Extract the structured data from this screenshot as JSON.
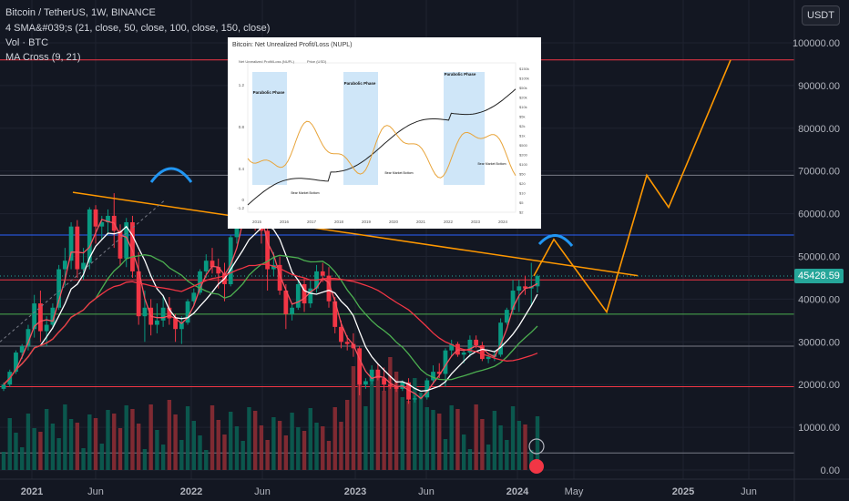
{
  "header": {
    "symbol_line": "Bitcoin / TetherUS, 1W, BINANCE",
    "sma_line": "4 SMA&#039;s (21, close, 50, close, 100, close, 150, close)",
    "vol_line": "Vol · BTC",
    "ma_cross_line": "MA Cross (9, 21)",
    "currency_button": "USDT"
  },
  "price_badge": "45428.59",
  "inset": {
    "title": "Bitcoin: Net Unrealized Profit/Loss (NUPL)",
    "legend": [
      "Net Unrealized Profit/Loss (NUPL)",
      "Price (USD)"
    ],
    "phase_labels": [
      "Parabolic Phase",
      "Parabolic Phase",
      "Parabolic Phase"
    ],
    "bottom_labels": [
      "Bear Market Bottom",
      "Bear Market Bottom",
      "Bear Market Bottom"
    ],
    "x_ticks": [
      "2015",
      "2016",
      "2017",
      "2018",
      "2019",
      "2020",
      "2021",
      "2022",
      "2023",
      "2024"
    ],
    "y_left_ticks": [
      "1.2",
      "0.8",
      "0.4",
      "0",
      "-1.2"
    ],
    "y_right_ticks": [
      "$150k",
      "$100k",
      "$50k",
      "$20k",
      "$10k",
      "$5k",
      "$2k",
      "$1k",
      "$500",
      "$200",
      "$100",
      "$50",
      "$20",
      "$10",
      "$5",
      "$2"
    ]
  },
  "chart_data": {
    "type": "candlestick",
    "y_axis_ticks": [
      "100000.00",
      "90000.00",
      "80000.00",
      "70000.00",
      "60000.00",
      "50000.00",
      "40000.00",
      "30000.00",
      "20000.00",
      "10000.00",
      "0.00"
    ],
    "x_axis_ticks": [
      "2021",
      "Jun",
      "2022",
      "Jun",
      "2023",
      "Jun",
      "2024",
      "May",
      "2025",
      "Jun"
    ],
    "ylim": [
      -1500,
      105500
    ],
    "last_price": 45428.59,
    "horizontal_levels": [
      {
        "price": 96000,
        "color": "#f23645"
      },
      {
        "price": 69000,
        "color": "#787b86"
      },
      {
        "price": 55000,
        "color": "#2962ff"
      },
      {
        "price": 44500,
        "color": "#f23645"
      },
      {
        "price": 36500,
        "color": "#4caf50"
      },
      {
        "price": 29000,
        "color": "#787b86"
      },
      {
        "price": 19500,
        "color": "#f23645"
      },
      {
        "price": 4000,
        "color": "#787b86"
      }
    ],
    "candles": [
      [
        19000,
        20500,
        18500,
        20000
      ],
      [
        20000,
        23500,
        19500,
        23000
      ],
      [
        23000,
        28000,
        22500,
        27500
      ],
      [
        27500,
        29500,
        26000,
        29000
      ],
      [
        29000,
        34000,
        28000,
        33000
      ],
      [
        33000,
        41000,
        31000,
        39000
      ],
      [
        39000,
        42000,
        30000,
        32500
      ],
      [
        32500,
        36000,
        29000,
        34000
      ],
      [
        34000,
        39000,
        33000,
        38000
      ],
      [
        38000,
        48000,
        37500,
        47000
      ],
      [
        47000,
        52000,
        43000,
        49000
      ],
      [
        49000,
        58000,
        47000,
        57000
      ],
      [
        57000,
        58500,
        45000,
        47000
      ],
      [
        47000,
        52000,
        44500,
        48500
      ],
      [
        48500,
        61500,
        47000,
        61000
      ],
      [
        61000,
        62000,
        53000,
        57000
      ],
      [
        57000,
        59500,
        54000,
        58000
      ],
      [
        58000,
        61000,
        55000,
        59500
      ],
      [
        59500,
        64800,
        52000,
        56000
      ],
      [
        56000,
        57500,
        48000,
        49500
      ],
      [
        49500,
        59000,
        47500,
        58000
      ],
      [
        58000,
        59500,
        45000,
        46500
      ],
      [
        46500,
        51000,
        34000,
        36000
      ],
      [
        36000,
        42000,
        30000,
        38000
      ],
      [
        38000,
        40000,
        31500,
        34000
      ],
      [
        34000,
        39000,
        32000,
        35000
      ],
      [
        35000,
        41000,
        33500,
        38000
      ],
      [
        38000,
        40500,
        34000,
        35500
      ],
      [
        35500,
        36500,
        30000,
        33000
      ],
      [
        33000,
        36000,
        29500,
        34500
      ],
      [
        34500,
        40000,
        34000,
        39500
      ],
      [
        39500,
        42500,
        38500,
        41500
      ],
      [
        41500,
        47000,
        41000,
        46500
      ],
      [
        46500,
        50500,
        45000,
        49000
      ],
      [
        49000,
        52000,
        46000,
        47500
      ],
      [
        47500,
        49500,
        42500,
        46000
      ],
      [
        46000,
        48500,
        39500,
        43500
      ],
      [
        43500,
        55000,
        43000,
        54500
      ],
      [
        54500,
        59000,
        53000,
        58000
      ],
      [
        58000,
        67000,
        57000,
        62000
      ],
      [
        62000,
        69000,
        60000,
        66000
      ],
      [
        66000,
        68000,
        56000,
        57000
      ],
      [
        57000,
        59000,
        53000,
        56000
      ],
      [
        56000,
        58000,
        42000,
        47000
      ],
      [
        47000,
        51000,
        45500,
        48000
      ],
      [
        48000,
        50000,
        41000,
        42000
      ],
      [
        42000,
        43500,
        33000,
        36500
      ],
      [
        36500,
        39000,
        35000,
        38000
      ],
      [
        38000,
        44500,
        37500,
        43500
      ],
      [
        43500,
        45000,
        37000,
        39000
      ],
      [
        39000,
        44500,
        38000,
        42500
      ],
      [
        42500,
        48000,
        41500,
        46500
      ],
      [
        46500,
        48500,
        44000,
        45500
      ],
      [
        45500,
        47500,
        38000,
        39500
      ],
      [
        39500,
        40500,
        32000,
        33500
      ],
      [
        33500,
        35000,
        28500,
        30000
      ],
      [
        30000,
        31500,
        28000,
        29500
      ],
      [
        29500,
        32000,
        26500,
        28500
      ],
      [
        28500,
        29000,
        17500,
        20000
      ],
      [
        20000,
        21500,
        19000,
        20800
      ],
      [
        20800,
        24500,
        20000,
        23500
      ],
      [
        23500,
        25000,
        21000,
        21500
      ],
      [
        21500,
        24000,
        18500,
        20000
      ],
      [
        20000,
        22000,
        19000,
        19500
      ],
      [
        19500,
        20500,
        18300,
        19000
      ],
      [
        19000,
        21000,
        18500,
        20500
      ],
      [
        20500,
        21500,
        15500,
        16500
      ],
      [
        16500,
        17500,
        15800,
        16800
      ],
      [
        16800,
        18000,
        16500,
        17000
      ],
      [
        17000,
        21500,
        16500,
        21000
      ],
      [
        21000,
        24500,
        20500,
        23000
      ],
      [
        23000,
        25000,
        21500,
        22500
      ],
      [
        22500,
        28500,
        19500,
        28000
      ],
      [
        28000,
        30500,
        26500,
        29500
      ],
      [
        29500,
        30000,
        26500,
        27000
      ],
      [
        27000,
        28000,
        25000,
        27500
      ],
      [
        27500,
        31500,
        26500,
        30500
      ],
      [
        30500,
        31500,
        28500,
        29200
      ],
      [
        29200,
        30000,
        25500,
        26000
      ],
      [
        26000,
        27000,
        25000,
        26500
      ],
      [
        26500,
        28000,
        25500,
        27000
      ],
      [
        27000,
        35500,
        26500,
        34500
      ],
      [
        34500,
        38000,
        34000,
        37500
      ],
      [
        37500,
        44500,
        36500,
        42000
      ],
      [
        42000,
        44500,
        37000,
        43000
      ],
      [
        43000,
        45500,
        41000,
        42500
      ],
      [
        42500,
        48500,
        38500,
        43000
      ],
      [
        43000,
        45800,
        41500,
        45428.59
      ]
    ],
    "candle_x_range": [
      0,
      590
    ],
    "volume_scale_max": 1,
    "series": [
      {
        "name": "MA 9",
        "color": "#f7525f"
      },
      {
        "name": "MA 21",
        "color": "#ffffff"
      },
      {
        "name": "SMA 50",
        "color": "#4caf50"
      },
      {
        "name": "SMA 100",
        "color": "#f23645"
      }
    ],
    "projection": {
      "color": "#ff9800",
      "path_prices": [
        45428.59,
        54000,
        37000,
        69000,
        61500,
        96000
      ],
      "trendline": {
        "from_price": 65000,
        "to_price": 45500
      }
    }
  }
}
